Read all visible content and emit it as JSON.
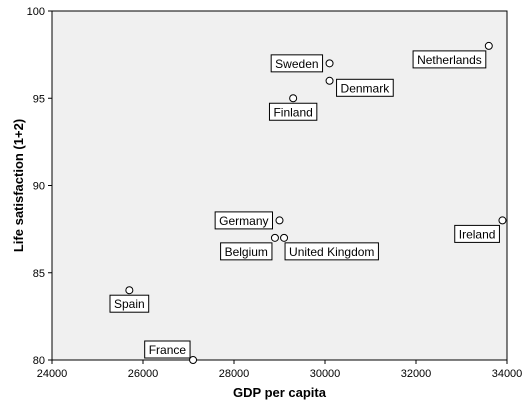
{
  "chart_data": {
    "type": "scatter",
    "title": "",
    "xlabel": "GDP per capita",
    "ylabel": "Life satisfaction (1+2)",
    "xlim": [
      24000,
      34000
    ],
    "ylim": [
      80,
      100
    ],
    "x_ticks": [
      "24000",
      "26000",
      "28000",
      "30000",
      "32000",
      "34000"
    ],
    "y_ticks": [
      "80",
      "85",
      "90",
      "95",
      "100"
    ],
    "grid": false,
    "colors": {
      "plot_bg": "#f0f0f0",
      "marker_fill": "#ffffff",
      "stroke": "#000000"
    },
    "points": [
      {
        "label": "Netherlands",
        "x": 33600,
        "y": 98,
        "label_pos": "left-below"
      },
      {
        "label": "Sweden",
        "x": 30100,
        "y": 97,
        "label_pos": "left"
      },
      {
        "label": "Denmark",
        "x": 30100,
        "y": 96,
        "label_pos": "right"
      },
      {
        "label": "Finland",
        "x": 29300,
        "y": 95,
        "label_pos": "below"
      },
      {
        "label": "Germany",
        "x": 29000,
        "y": 88,
        "label_pos": "left"
      },
      {
        "label": "Belgium",
        "x": 28900,
        "y": 87,
        "label_pos": "left-below"
      },
      {
        "label": "United Kingdom",
        "x": 29100,
        "y": 87,
        "label_pos": "right-below"
      },
      {
        "label": "Ireland",
        "x": 33900,
        "y": 88,
        "label_pos": "left-below"
      },
      {
        "label": "Spain",
        "x": 25700,
        "y": 84,
        "label_pos": "below"
      },
      {
        "label": "France",
        "x": 27100,
        "y": 80,
        "label_pos": "left-above"
      }
    ]
  }
}
